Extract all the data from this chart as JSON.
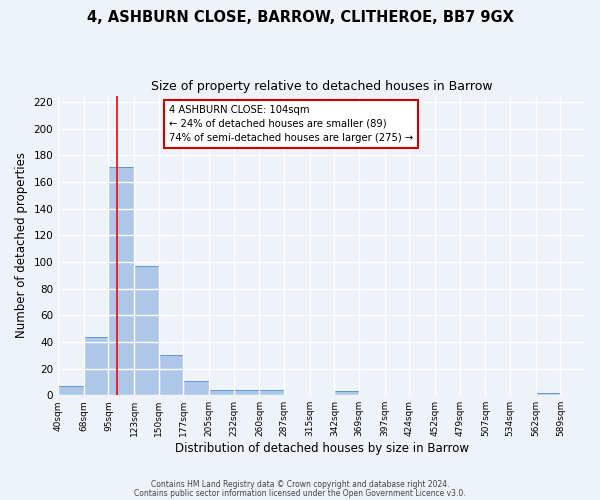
{
  "title": "4, ASHBURN CLOSE, BARROW, CLITHEROE, BB7 9GX",
  "subtitle": "Size of property relative to detached houses in Barrow",
  "xlabel": "Distribution of detached houses by size in Barrow",
  "ylabel": "Number of detached properties",
  "bin_labels": [
    "40sqm",
    "68sqm",
    "95sqm",
    "123sqm",
    "150sqm",
    "177sqm",
    "205sqm",
    "232sqm",
    "260sqm",
    "287sqm",
    "315sqm",
    "342sqm",
    "369sqm",
    "397sqm",
    "424sqm",
    "452sqm",
    "479sqm",
    "507sqm",
    "534sqm",
    "562sqm",
    "589sqm"
  ],
  "bin_edges": [
    40,
    68,
    95,
    123,
    150,
    177,
    205,
    232,
    260,
    287,
    315,
    342,
    369,
    397,
    424,
    452,
    479,
    507,
    534,
    562,
    589
  ],
  "bar_heights": [
    7,
    44,
    171,
    97,
    30,
    11,
    4,
    4,
    4,
    0,
    0,
    3,
    0,
    0,
    0,
    0,
    0,
    0,
    0,
    2,
    0
  ],
  "bar_color": "#aec6e8",
  "bar_edgecolor": "#5b9bd5",
  "red_line_x": 104,
  "ylim": [
    0,
    225
  ],
  "yticks": [
    0,
    20,
    40,
    60,
    80,
    100,
    120,
    140,
    160,
    180,
    200,
    220
  ],
  "annotation_title": "4 ASHBURN CLOSE: 104sqm",
  "annotation_line1": "← 24% of detached houses are smaller (89)",
  "annotation_line2": "74% of semi-detached houses are larger (275) →",
  "annotation_box_color": "#ffffff",
  "annotation_box_edgecolor": "#cc0000",
  "footer_line1": "Contains HM Land Registry data © Crown copyright and database right 2024.",
  "footer_line2": "Contains public sector information licensed under the Open Government Licence v3.0.",
  "bg_color": "#eef2f9",
  "grid_color": "#ffffff",
  "title_fontsize": 10.5,
  "subtitle_fontsize": 9
}
